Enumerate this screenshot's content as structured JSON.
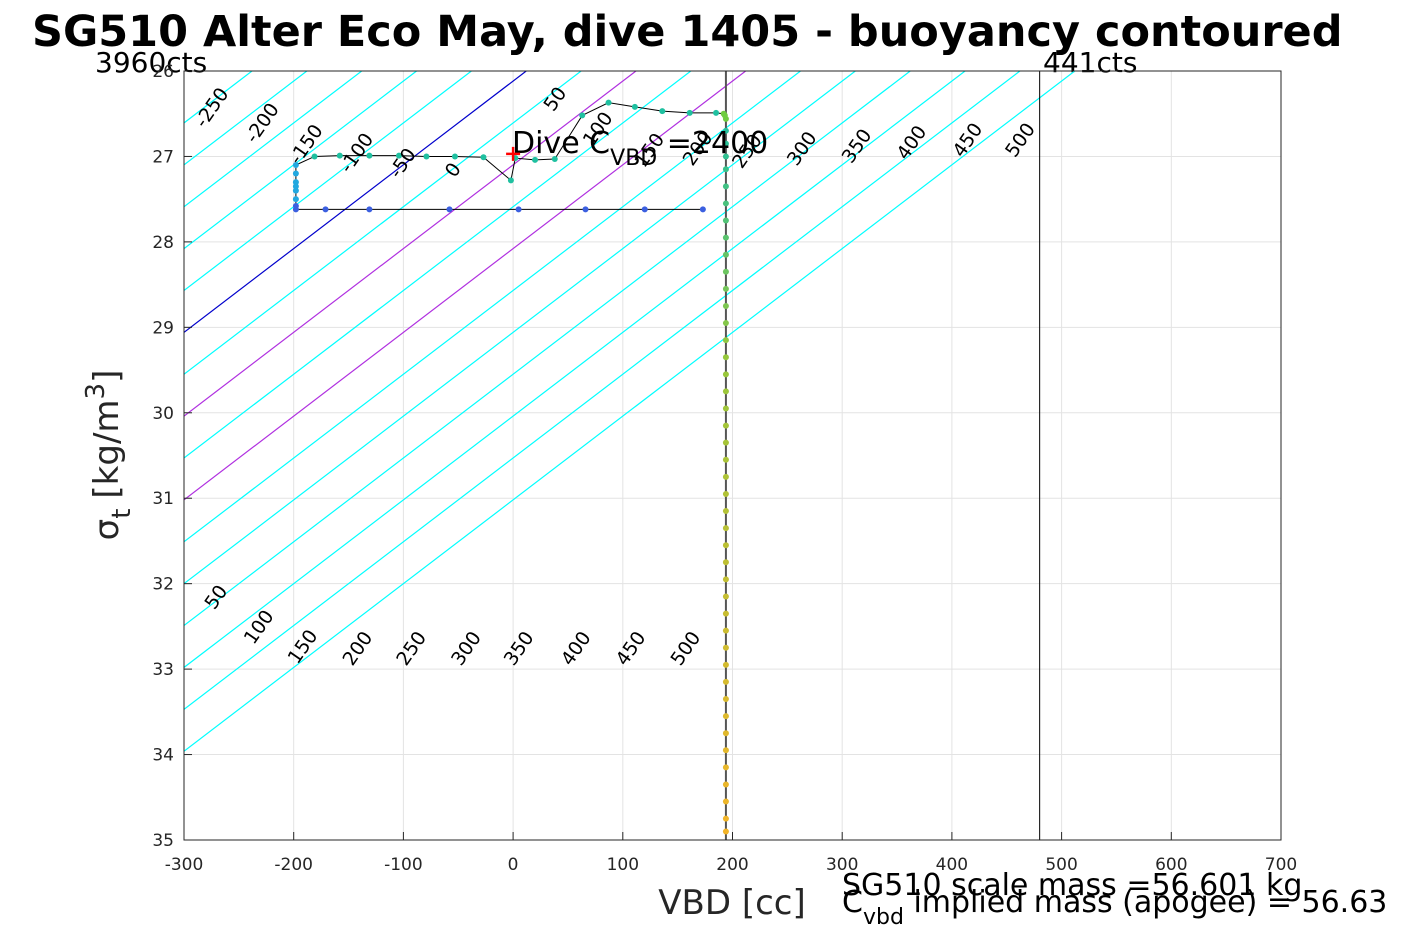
{
  "chart_data": {
    "type": "scatter",
    "title": "SG510 Alter Eco May, dive 1405 - buoyancy contoured",
    "xlabel": "VBD [cc]",
    "ylabel_main": "σ",
    "ylabel_sub": "t",
    "ylabel_units": "[kg/m",
    "ylabel_sup": "3",
    "ylabel_close": "]",
    "xlim": [
      -300,
      700
    ],
    "ylim": [
      26,
      35
    ],
    "y_reversed": true,
    "grid": true,
    "xticks": [
      -300,
      -200,
      -100,
      0,
      100,
      200,
      300,
      400,
      500,
      600,
      700
    ],
    "yticks": [
      26,
      27,
      28,
      29,
      30,
      31,
      32,
      33,
      34,
      35
    ],
    "xtick_labels": [
      "-300",
      "-200",
      "-100",
      "0",
      "100",
      "200",
      "300",
      "400",
      "500",
      "600",
      "700"
    ],
    "ytick_labels": [
      "26",
      "27",
      "28",
      "29",
      "30",
      "31",
      "32",
      "33",
      "34",
      "35"
    ],
    "corner_left": "3960cts",
    "corner_right": "441cts",
    "dive_label_main": "Dive C",
    "dive_label_sub": "VBD",
    "dive_label_value": " =2400",
    "dive_marker": {
      "x": 0,
      "y": 26.97
    },
    "note_line1": "SG510 scale mass =56.601 kg",
    "note_line2_main": "C",
    "note_line2_sub": "vbd",
    "note_line2_rest": " implied mass (apogee) = 56.63",
    "contours": {
      "base_vbd_at_sigma26": 12,
      "slope_cc_per_sigma": -25.5,
      "levels": [
        -250,
        -200,
        -150,
        -100,
        -50,
        0,
        50,
        100,
        150,
        200,
        250,
        300,
        350,
        400,
        450,
        500
      ],
      "zero_level": 0,
      "highlight_levels": [
        100,
        200
      ],
      "color_default": "#00ffff",
      "color_zero": "#0000cc",
      "color_highlight": "#b030e0",
      "upper_labels": [
        {
          "text": "-250",
          "x": -270,
          "y": 26.47
        },
        {
          "text": "-200",
          "x": -224,
          "y": 26.65
        },
        {
          "text": "-150",
          "x": -184,
          "y": 26.9
        },
        {
          "text": "-100",
          "x": -138,
          "y": 27.0
        },
        {
          "text": "-50",
          "x": -96,
          "y": 27.12
        },
        {
          "text": "0",
          "x": -50,
          "y": 27.2
        },
        {
          "text": "50",
          "x": 43,
          "y": 26.37
        },
        {
          "text": "100",
          "x": 82,
          "y": 26.72
        },
        {
          "text": "150",
          "x": 129,
          "y": 26.97
        },
        {
          "text": "200",
          "x": 173,
          "y": 26.95
        },
        {
          "text": "250",
          "x": 218,
          "y": 26.98
        },
        {
          "text": "300",
          "x": 268,
          "y": 26.95
        },
        {
          "text": "350",
          "x": 318,
          "y": 26.92
        },
        {
          "text": "400",
          "x": 368,
          "y": 26.88
        },
        {
          "text": "450",
          "x": 419,
          "y": 26.85
        },
        {
          "text": "500",
          "x": 467,
          "y": 26.85
        }
      ],
      "lower_labels": [
        {
          "text": "50",
          "x": -266,
          "y": 32.2
        },
        {
          "text": "100",
          "x": -227,
          "y": 32.55
        },
        {
          "text": "150",
          "x": -187,
          "y": 32.78
        },
        {
          "text": "200",
          "x": -137,
          "y": 32.8
        },
        {
          "text": "250",
          "x": -88,
          "y": 32.8
        },
        {
          "text": "300",
          "x": -38,
          "y": 32.8
        },
        {
          "text": "350",
          "x": 10,
          "y": 32.8
        },
        {
          "text": "400",
          "x": 62,
          "y": 32.8
        },
        {
          "text": "450",
          "x": 112,
          "y": 32.8
        },
        {
          "text": "500",
          "x": 162,
          "y": 32.8
        }
      ]
    },
    "vertical_lines": [
      {
        "x": 194,
        "color": "#555555",
        "width": 2
      },
      {
        "x": 480,
        "color": "#000000",
        "width": 1
      }
    ],
    "series": [
      {
        "name": "",
        "line_color": "#000000",
        "points": [
          [
            173,
            27.62
          ],
          [
            120,
            27.62
          ],
          [
            66,
            27.62
          ],
          [
            5,
            27.62
          ],
          [
            -58,
            27.62
          ],
          [
            -131,
            27.62
          ],
          [
            -171,
            27.62
          ],
          [
            -198,
            27.62
          ],
          [
            -198,
            27.58
          ],
          [
            -198,
            27.5
          ],
          [
            -198,
            27.4
          ],
          [
            -198,
            27.35
          ],
          [
            -198,
            27.3
          ],
          [
            -198,
            27.2
          ],
          [
            -198,
            27.1
          ],
          [
            -181,
            27.0
          ],
          [
            -158,
            26.99
          ],
          [
            -131,
            26.99
          ],
          [
            -104,
            26.99
          ],
          [
            -79,
            27.0
          ],
          [
            -53,
            27.0
          ],
          [
            -27,
            27.01
          ],
          [
            -2,
            27.28
          ],
          [
            2,
            27.02
          ],
          [
            20,
            27.04
          ],
          [
            38,
            27.03
          ],
          [
            63,
            26.52
          ],
          [
            87,
            26.37
          ],
          [
            111,
            26.42
          ],
          [
            136,
            26.47
          ],
          [
            161,
            26.49
          ],
          [
            185,
            26.49
          ],
          [
            192,
            26.5
          ],
          [
            193,
            26.52
          ],
          [
            194,
            26.56
          ]
        ]
      },
      {
        "name": "",
        "points": [
          [
            194,
            26.7
          ],
          [
            194,
            26.85
          ],
          [
            194,
            27.0
          ],
          [
            194,
            27.15
          ],
          [
            194,
            27.35
          ],
          [
            194,
            27.55
          ],
          [
            194,
            27.75
          ],
          [
            194,
            27.95
          ],
          [
            194,
            28.15
          ],
          [
            194,
            28.35
          ],
          [
            194,
            28.55
          ],
          [
            194,
            28.75
          ],
          [
            194,
            28.95
          ],
          [
            194,
            29.15
          ],
          [
            194,
            29.35
          ],
          [
            194,
            29.55
          ],
          [
            194,
            29.75
          ],
          [
            194,
            29.95
          ],
          [
            194,
            30.15
          ],
          [
            194,
            30.35
          ],
          [
            194,
            30.55
          ],
          [
            194,
            30.75
          ],
          [
            194,
            30.95
          ],
          [
            194,
            31.15
          ],
          [
            194,
            31.35
          ],
          [
            194,
            31.55
          ],
          [
            194,
            31.75
          ],
          [
            194,
            31.95
          ],
          [
            194,
            32.15
          ],
          [
            194,
            32.35
          ],
          [
            194,
            32.55
          ],
          [
            194,
            32.75
          ],
          [
            194,
            32.95
          ],
          [
            194,
            33.15
          ],
          [
            194,
            33.35
          ],
          [
            194,
            33.55
          ],
          [
            194,
            33.75
          ],
          [
            194,
            33.95
          ],
          [
            194,
            34.15
          ],
          [
            194,
            34.35
          ],
          [
            194,
            34.55
          ],
          [
            194,
            34.75
          ],
          [
            194,
            34.9
          ]
        ]
      }
    ]
  }
}
